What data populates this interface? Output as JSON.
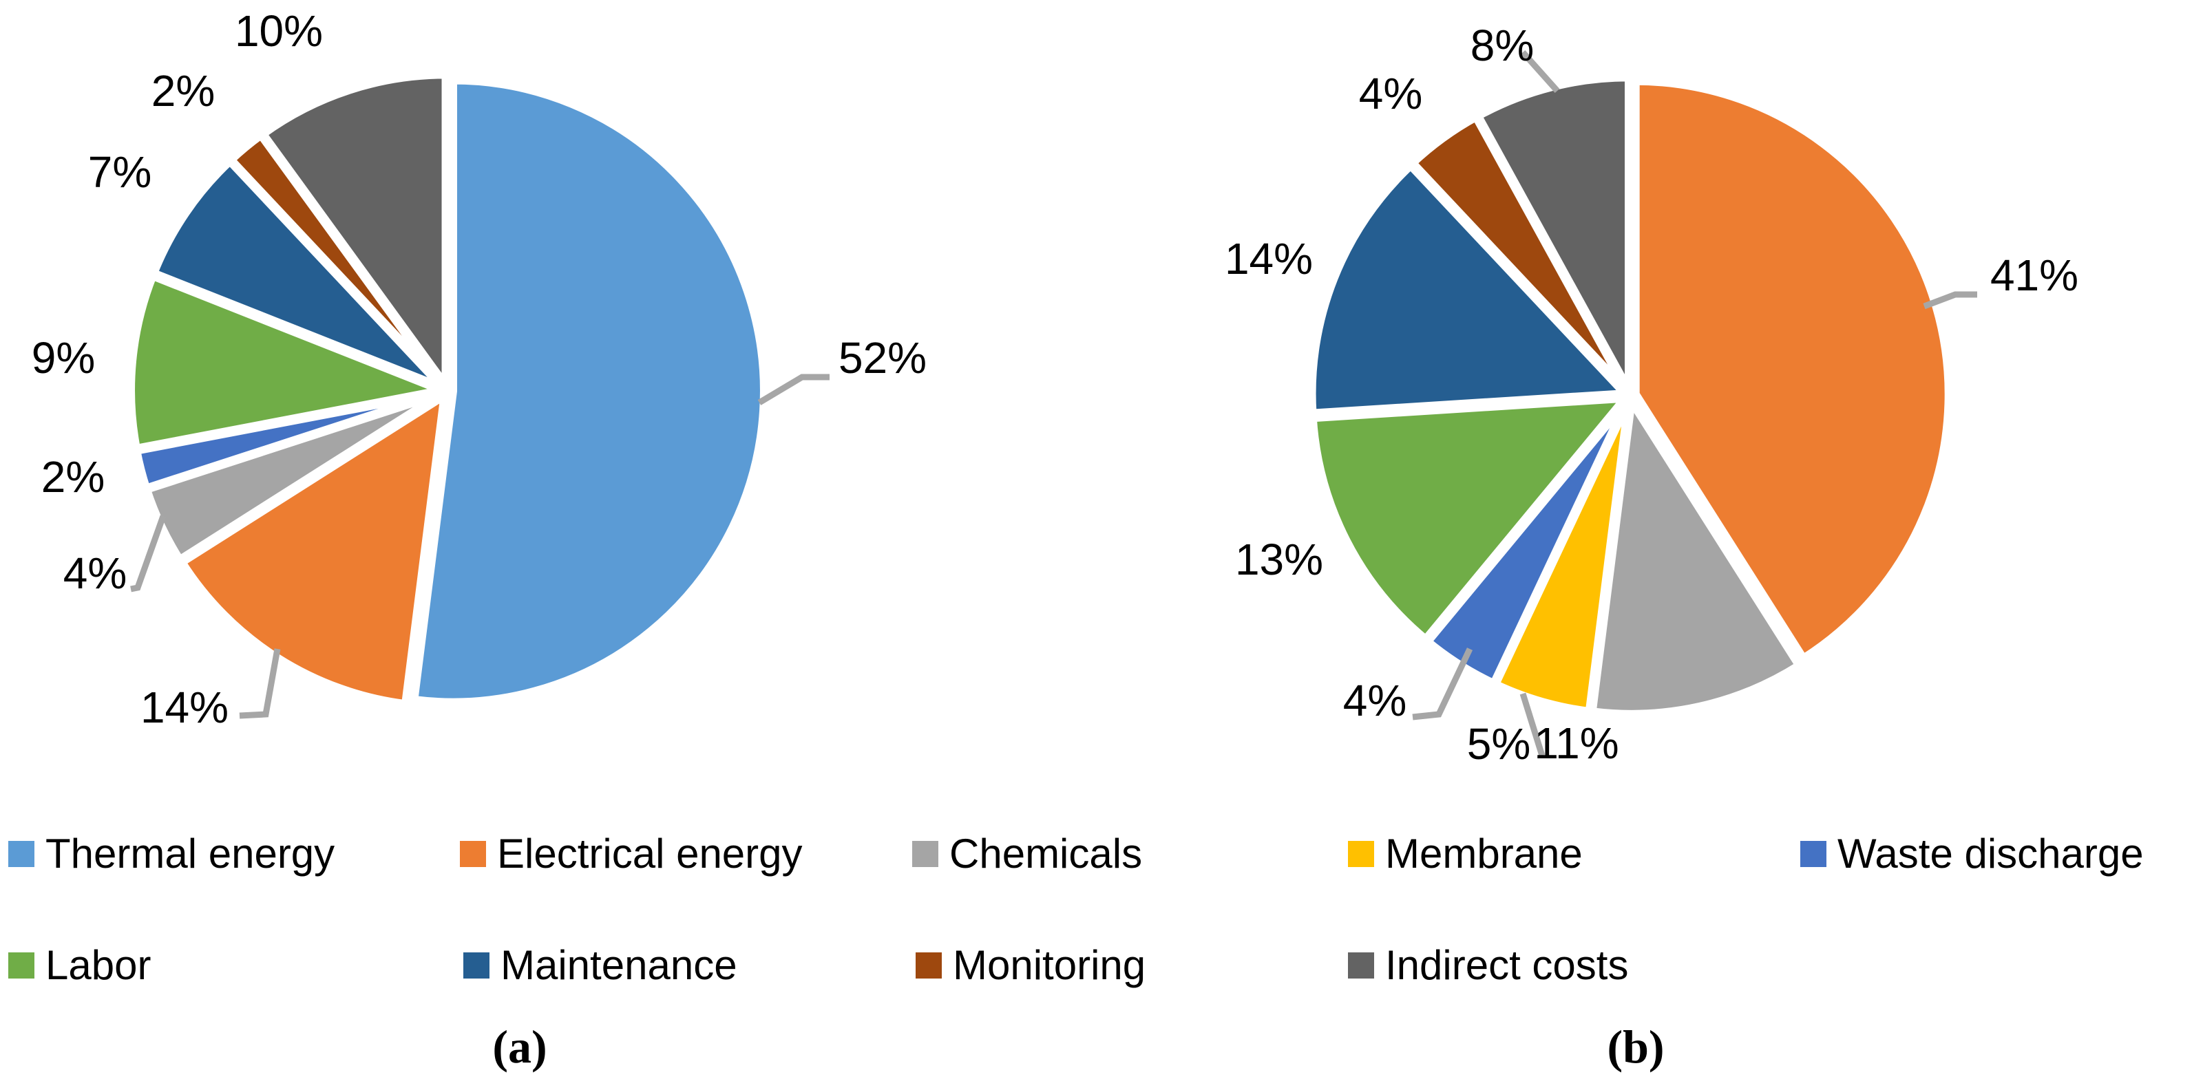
{
  "figure": {
    "captions": {
      "a": "(a)",
      "b": "(b)"
    },
    "leader_line_color": "#A6A6A6",
    "colors": {
      "Thermal energy": "#5B9BD5",
      "Electrical energy": "#ED7D31",
      "Chemicals": "#A5A5A5",
      "Membrane": "#FFC000",
      "Waste discharge": "#4472C4",
      "Labor": "#70AD47",
      "Maintenance": "#255E91",
      "Monitoring": "#9E480E",
      "Indirect costs": "#636363"
    },
    "legend": {
      "position": "bottom",
      "rows": [
        [
          "Thermal energy",
          "Electrical energy",
          "Chemicals",
          "Membrane",
          "Waste discharge"
        ],
        [
          "Labor",
          "Maintenance",
          "Monitoring",
          "Indirect costs"
        ]
      ]
    },
    "chart_data": [
      {
        "type": "pie",
        "panel": "a",
        "title": "",
        "start_angle_deg": 0,
        "direction": "clockwise",
        "categories": [
          "Thermal energy",
          "Electrical energy",
          "Chemicals",
          "Waste discharge",
          "Labor",
          "Maintenance",
          "Monitoring",
          "Indirect costs"
        ],
        "values": [
          52,
          14,
          4,
          2,
          9,
          7,
          2,
          10
        ],
        "data_labels": [
          "52%",
          "14%",
          "4%",
          "2%",
          "9%",
          "7%",
          "2%",
          "10%"
        ]
      },
      {
        "type": "pie",
        "panel": "b",
        "title": "",
        "start_angle_deg": 0,
        "direction": "clockwise",
        "categories": [
          "Electrical energy",
          "Chemicals",
          "Membrane",
          "Waste discharge",
          "Labor",
          "Maintenance",
          "Monitoring",
          "Indirect costs"
        ],
        "values": [
          41,
          11,
          5,
          4,
          13,
          14,
          4,
          8
        ],
        "data_labels": [
          "41%",
          "11%",
          "5%",
          "4%",
          "13%",
          "14%",
          "4%",
          "8%"
        ]
      }
    ]
  }
}
